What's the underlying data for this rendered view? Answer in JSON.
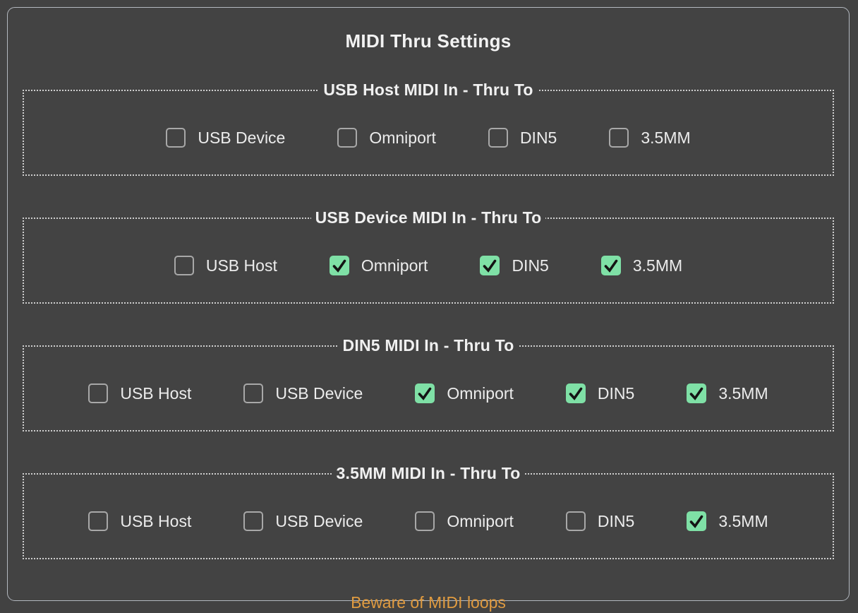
{
  "window": {
    "title": "MIDI Thru Settings"
  },
  "colors": {
    "background": "#424242",
    "panel_border": "#b3b8bf",
    "group_border": "#cfcfcf",
    "text": "#ececec",
    "checkbox_checked_fill": "#7fe0a6",
    "checkbox_unchecked_border": "#a8a8a8",
    "checkmark": "#141414",
    "warning_text": "#e09b40"
  },
  "groups": [
    {
      "legend": "USB Host MIDI In - Thru To",
      "options": [
        {
          "label": "USB Device",
          "checked": false
        },
        {
          "label": "Omniport",
          "checked": false
        },
        {
          "label": "DIN5",
          "checked": false
        },
        {
          "label": "3.5MM",
          "checked": false
        }
      ]
    },
    {
      "legend": "USB Device MIDI In - Thru To",
      "options": [
        {
          "label": "USB Host",
          "checked": false
        },
        {
          "label": "Omniport",
          "checked": true
        },
        {
          "label": "DIN5",
          "checked": true
        },
        {
          "label": "3.5MM",
          "checked": true
        }
      ]
    },
    {
      "legend": "DIN5 MIDI In - Thru To",
      "options": [
        {
          "label": "USB Host",
          "checked": false
        },
        {
          "label": "USB Device",
          "checked": false
        },
        {
          "label": "Omniport",
          "checked": true
        },
        {
          "label": "DIN5",
          "checked": true
        },
        {
          "label": "3.5MM",
          "checked": true
        }
      ]
    },
    {
      "legend": "3.5MM MIDI In - Thru To",
      "options": [
        {
          "label": "USB Host",
          "checked": false
        },
        {
          "label": "USB Device",
          "checked": false
        },
        {
          "label": "Omniport",
          "checked": false
        },
        {
          "label": "DIN5",
          "checked": false
        },
        {
          "label": "3.5MM",
          "checked": true
        }
      ]
    }
  ],
  "footer": {
    "warning": "Beware of MIDI loops"
  }
}
